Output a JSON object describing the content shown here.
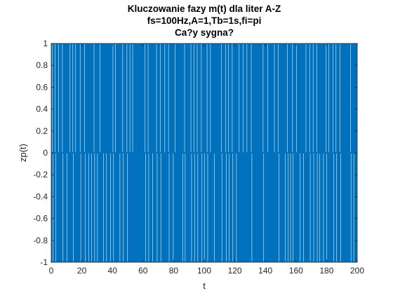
{
  "chart_data": {
    "type": "line",
    "title": [
      "Kluczowanie fazy m(t) dla liter A-Z",
      "fs=100Hz,A=1,Tb=1s,fi=pi",
      "Ca?y sygna?"
    ],
    "xlabel": "t",
    "ylabel": "zp(t)",
    "xlim": [
      0,
      200
    ],
    "ylim": [
      -1,
      1
    ],
    "xticks": [
      0,
      20,
      40,
      60,
      80,
      100,
      120,
      140,
      160,
      180,
      200
    ],
    "yticks": [
      -1,
      -0.8,
      -0.6,
      -0.4,
      -0.2,
      0,
      0.2,
      0.4,
      0.6,
      0.8,
      1
    ],
    "xtick_labels": [
      "0",
      "20",
      "40",
      "60",
      "80",
      "100",
      "120",
      "140",
      "160",
      "180",
      "200"
    ],
    "ytick_labels": [
      "-1",
      "-0.8",
      "-0.6",
      "-0.4",
      "-0.2",
      "0",
      "0.2",
      "0.4",
      "0.6",
      "0.8",
      "1"
    ],
    "grid": false,
    "series": [
      {
        "color": "#0072BD",
        "amplitude": 1,
        "sample_rate_hz": 100,
        "bit_duration_s": 1,
        "t_end": 200
      }
    ]
  }
}
